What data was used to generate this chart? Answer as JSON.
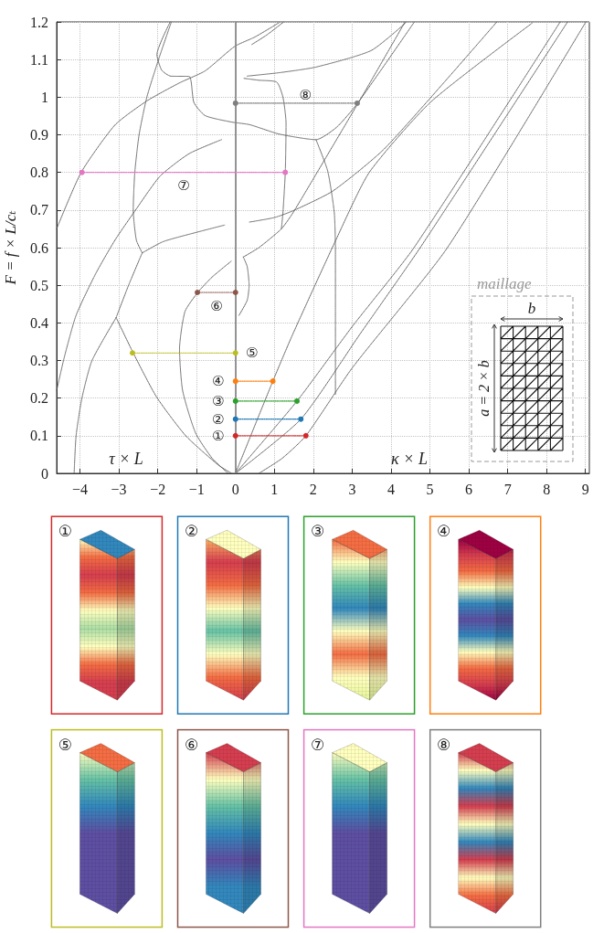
{
  "chart_data": {
    "type": "line",
    "ylabel": "F = f × L/cₜ",
    "xlim": [
      -4.6,
      9.1
    ],
    "ylim": [
      0,
      1.2
    ],
    "xticks": [
      {
        "value": -4,
        "label": "−4"
      },
      {
        "value": -3,
        "label": "−3"
      },
      {
        "value": -2,
        "label": "−2"
      },
      {
        "value": -1,
        "label": "−1"
      },
      0,
      1,
      2,
      3,
      4,
      5,
      6,
      7,
      8,
      9
    ],
    "yticks": [
      0,
      0.1,
      0.2,
      0.3,
      0.4,
      0.5,
      0.6,
      0.7,
      0.8,
      0.9,
      1,
      1.1,
      1.2
    ],
    "grid": true,
    "line_style": "dotted",
    "marker": "none",
    "ref_lines": [
      {
        "axis": "x",
        "value": 0,
        "color": "#8a8a8a",
        "line_style": "solid"
      }
    ],
    "series": [
      {
        "color": "#555555",
        "x": [
          -4.15,
          -4.1,
          -3.95,
          -3.69,
          -3.07
        ],
        "values": [
          0,
          0.1,
          0.2,
          0.3,
          0.414
        ]
      },
      {
        "color": "#555555",
        "x": [
          -3.07,
          -2.63,
          -2.03,
          -1.28,
          -0.44,
          -0.1
        ],
        "values": [
          0.414,
          0.32,
          0.203,
          0.1,
          0.022,
          0
        ]
      },
      {
        "color": "#555555",
        "x": [
          -3.07,
          -2.75,
          -2.4
        ],
        "values": [
          0.414,
          0.5,
          0.586
        ]
      },
      {
        "color": "#555555",
        "x": [
          -2.4,
          -1.86,
          -1.03,
          -0.28
        ],
        "values": [
          0.586,
          0.616,
          0.64,
          0.66
        ]
      },
      {
        "color": "#555555",
        "x": [
          -4.6,
          -4.4,
          -4.1,
          -3.6,
          -3.1,
          -2.57,
          -1.94,
          -1.19,
          -0.36
        ],
        "values": [
          0.22,
          0.31,
          0.42,
          0.53,
          0.62,
          0.7,
          0.79,
          0.85,
          0.887
        ]
      },
      {
        "color": "#555555",
        "x": [
          -4.6,
          -3.97,
          -3.1,
          -2.28,
          -1.44,
          -0.78,
          -0.02,
          0.5,
          1.12
        ],
        "values": [
          0.65,
          0.8,
          0.926,
          0.99,
          1.038,
          1.07,
          1.135,
          1.16,
          1.198
        ]
      },
      {
        "color": "#555555",
        "x": [
          -2.4,
          -2.55,
          -2.63,
          -2.59,
          -2.48,
          -2.28,
          -1.98,
          -1.65
        ],
        "values": [
          0.586,
          0.62,
          0.7,
          0.8,
          0.9,
          1.0,
          1.1,
          1.2
        ]
      },
      {
        "color": "#555555",
        "x": [
          -1.68,
          -2.02,
          -1.9,
          -1.67,
          -1.19,
          -1.07,
          -0.78,
          -0.11,
          0.36,
          1.12,
          2.07,
          2.6,
          3.14,
          4.6
        ],
        "values": [
          1.2,
          1.113,
          1.072,
          1.056,
          1.055,
          0.986,
          0.951,
          0.934,
          0.927,
          0.902,
          0.887,
          0.92,
          0.984,
          1.2
        ]
      },
      {
        "color": "#555555",
        "x": [
          -0.19,
          -0.6,
          -1.03,
          -1.36,
          -1.44,
          -1.3,
          -0.97,
          -0.61,
          -0.11
        ],
        "values": [
          0,
          0.04,
          0.108,
          0.22,
          0.33,
          0.43,
          0.481,
          0.521,
          0.564
        ]
      },
      {
        "color": "#555555",
        "x": [
          0.09,
          0.3,
          0.35,
          0.3,
          0.2
        ],
        "values": [
          0.42,
          0.46,
          0.5,
          0.55,
          0.575
        ]
      },
      {
        "color": "#555555",
        "x": [
          0.36,
          1.0,
          1.48,
          2.51,
          3.85,
          6.72
        ],
        "values": [
          0.668,
          0.68,
          0.698,
          0.751,
          0.865,
          1.2
        ]
      },
      {
        "color": "#555555",
        "x": [
          0.2,
          0.6,
          1.18,
          1.48,
          2.5,
          3.3,
          4.36
        ],
        "values": [
          0.575,
          0.6,
          0.65,
          0.693,
          0.87,
          1.01,
          1.2
        ]
      },
      {
        "color": "#555555",
        "x": [
          1.18,
          1.22,
          1.28,
          1.3,
          1.22,
          1.06,
          0.6,
          0.22
        ],
        "values": [
          0.65,
          0.693,
          0.8,
          0.93,
          1.0,
          1.04,
          1.045,
          1.05
        ]
      },
      {
        "color": "#555555",
        "x": [
          0,
          0.96,
          1.46,
          2.58,
          3.44,
          5.03,
          7.63
        ],
        "values": [
          0,
          0.245,
          0.367,
          0.62,
          0.8,
          0.988,
          1.197
        ]
      },
      {
        "color": "#555555",
        "x": [
          2.07,
          2.37,
          2.54,
          2.57,
          2.57,
          2.57
        ],
        "values": [
          0.887,
          0.804,
          0.693,
          0.594,
          0.4,
          0.21
        ]
      },
      {
        "color": "#555555",
        "x": [
          0,
          1.58,
          3.0,
          4.59,
          8.35
        ],
        "values": [
          0,
          0.192,
          0.39,
          0.6,
          1.2
        ]
      },
      {
        "color": "#555555",
        "x": [
          0,
          1.68,
          3.2,
          4.75,
          8.54
        ],
        "values": [
          0,
          0.144,
          0.37,
          0.6,
          1.2
        ]
      },
      {
        "color": "#555555",
        "x": [
          0.6,
          1.2,
          1.81,
          3.0,
          5.45,
          9.01
        ],
        "values": [
          0,
          0.04,
          0.1,
          0.28,
          0.6,
          1.2
        ]
      },
      {
        "color": "#555555",
        "x": [
          0.3,
          1.12,
          2.07,
          3.49,
          4.38
        ],
        "values": [
          1.056,
          1.065,
          1.08,
          1.124,
          1.198
        ]
      },
      {
        "color": "#555555",
        "x": [
          0.42,
          0.8,
          1.24
        ],
        "values": [
          1.14,
          1.165,
          1.2
        ]
      },
      {
        "name": "①",
        "color": "#d62728",
        "marker": "circle",
        "x": [
          0,
          1.81
        ],
        "values": [
          0.1,
          0.1
        ]
      },
      {
        "name": "②",
        "color": "#1f77b4",
        "marker": "circle",
        "x": [
          0,
          1.68
        ],
        "values": [
          0.144,
          0.144
        ]
      },
      {
        "name": "③",
        "color": "#2ca02c",
        "marker": "circle",
        "x": [
          0,
          1.58
        ],
        "values": [
          0.192,
          0.192
        ]
      },
      {
        "name": "④",
        "color": "#ff7f0e",
        "marker": "circle",
        "x": [
          0,
          0.96
        ],
        "values": [
          0.245,
          0.245
        ]
      },
      {
        "name": "⑤",
        "color": "#bcbd22",
        "marker": "circle",
        "x": [
          -2.65,
          0
        ],
        "values": [
          0.32,
          0.32
        ]
      },
      {
        "name": "⑥",
        "color": "#8c564b",
        "marker": "circle",
        "x": [
          -0.98,
          0
        ],
        "values": [
          0.481,
          0.481
        ]
      },
      {
        "name": "⑦",
        "color": "#e377c2",
        "marker": "circle",
        "x": [
          -3.95,
          1.28
        ],
        "values": [
          0.8,
          0.8
        ]
      },
      {
        "name": "⑧",
        "color": "#7f7f7f",
        "marker": "circle",
        "x": [
          0,
          3.13
        ],
        "values": [
          0.984,
          0.984
        ]
      }
    ],
    "annotations": [
      "τ × L",
      "κ × L",
      "maillage",
      "b",
      "a = 2 × b"
    ]
  }
}
